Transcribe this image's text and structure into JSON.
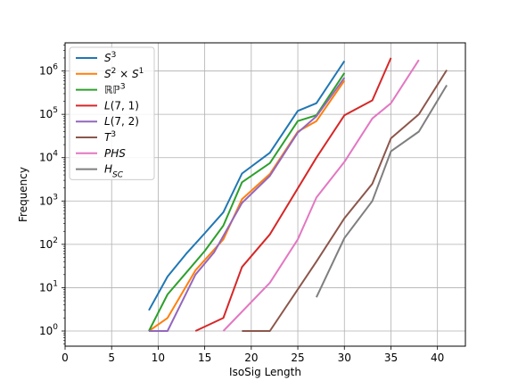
{
  "chart_data": {
    "type": "line",
    "xlabel": "IsoSig Length",
    "ylabel": "Frequency",
    "xlim": [
      0,
      43
    ],
    "ylim_log10": [
      -0.35,
      6.65
    ],
    "yscale": "log",
    "grid": true,
    "legend_position": "top-left",
    "xticks": [
      0,
      5,
      10,
      15,
      20,
      25,
      30,
      35,
      40
    ],
    "xtick_labels": [
      "0",
      "5",
      "10",
      "15",
      "20",
      "25",
      "30",
      "35",
      "40"
    ],
    "ytick_exponents": [
      0,
      1,
      2,
      3,
      4,
      5,
      6
    ],
    "series": [
      {
        "name": "S³",
        "label_html": "<tspan font-style='italic'>S</tspan><tspan baseline-shift='super' font-size='9'>3</tspan>",
        "color": "#1f77b4",
        "x": [
          9,
          11,
          13,
          15,
          17,
          19,
          22,
          25,
          27,
          30
        ],
        "y": [
          3,
          18,
          60,
          180,
          550,
          4300,
          13000,
          120000,
          180000,
          1700000
        ]
      },
      {
        "name": "S² × S¹",
        "label_html": "<tspan font-style='italic'>S</tspan><tspan baseline-shift='super' font-size='9'>2</tspan><tspan> × </tspan><tspan font-style='italic'>S</tspan><tspan baseline-shift='super' font-size='9'>1</tspan>",
        "color": "#ff7f0e",
        "x": [
          9,
          11,
          14,
          17,
          19,
          22,
          25,
          27,
          30
        ],
        "y": [
          1,
          2,
          25,
          130,
          1100,
          4200,
          40000,
          70000,
          600000
        ]
      },
      {
        "name": "ℝP³",
        "label_html": "<tspan>ℝℙ</tspan><tspan baseline-shift='super' font-size='9'>3</tspan>",
        "color": "#2ca02c",
        "x": [
          9,
          11,
          13,
          15,
          17,
          19,
          22,
          25,
          27,
          30
        ],
        "y": [
          1,
          7,
          22,
          70,
          270,
          2700,
          7500,
          70000,
          95000,
          900000
        ]
      },
      {
        "name": "L(7,1)",
        "label_html": "<tspan font-style='italic'>L</tspan><tspan>(7, 1)</tspan>",
        "color": "#d62728",
        "x": [
          14,
          17,
          19,
          22,
          27,
          30,
          33,
          35
        ],
        "y": [
          1,
          2,
          30,
          170,
          10000,
          95000,
          210000,
          2000000
        ]
      },
      {
        "name": "L(7,2)",
        "label_html": "<tspan font-style='italic'>L</tspan><tspan>(7, 2)</tspan>",
        "color": "#9467bd",
        "x": [
          9,
          11,
          14,
          16,
          19,
          22,
          25,
          27,
          30
        ],
        "y": [
          1,
          1,
          20,
          65,
          900,
          3800,
          38000,
          90000,
          700000
        ]
      },
      {
        "name": "T³",
        "label_html": "<tspan font-style='italic'>T</tspan><tspan baseline-shift='super' font-size='9'>3</tspan>",
        "color": "#8c564b",
        "x": [
          19,
          22,
          27,
          30,
          33,
          35,
          38,
          41
        ],
        "y": [
          1,
          1,
          40,
          400,
          2500,
          28000,
          100000,
          1050000
        ]
      },
      {
        "name": "PHS",
        "label_html": "<tspan font-style='italic'>PHS</tspan>",
        "color": "#e377c2",
        "x": [
          17,
          22,
          25,
          27,
          30,
          33,
          35,
          38
        ],
        "y": [
          1,
          13,
          130,
          1200,
          8000,
          80000,
          180000,
          1800000
        ]
      },
      {
        "name": "H_SC",
        "label_html": "<tspan font-style='italic'>H</tspan><tspan baseline-shift='sub' font-size='9' font-style='italic'>SC</tspan>",
        "color": "#7f7f7f",
        "x": [
          27,
          30,
          33,
          35,
          38,
          41
        ],
        "y": [
          6,
          140,
          1000,
          14000,
          40000,
          470000
        ]
      }
    ]
  }
}
